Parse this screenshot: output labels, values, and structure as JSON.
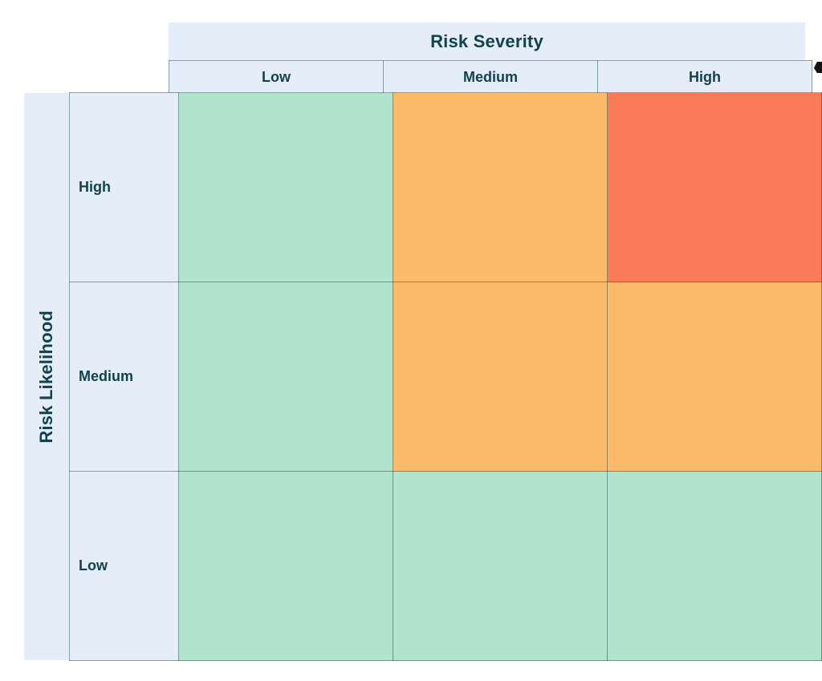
{
  "matrix": {
    "column_axis_title": "Risk Severity",
    "row_axis_title": "Risk Likelihood",
    "column_headers": [
      "Low",
      "Medium",
      "High"
    ],
    "row_headers": [
      "High",
      "Medium",
      "Low"
    ],
    "cells": [
      [
        "low",
        "medium",
        "high"
      ],
      [
        "low",
        "medium",
        "medium"
      ],
      [
        "low",
        "low",
        "low"
      ]
    ]
  },
  "colors": {
    "risk_low": "#b2e3cd",
    "risk_medium": "#fcbb6b",
    "risk_high": "#fa7b58",
    "header_bg": "#e5edf8",
    "text": "#12424d",
    "grid_line": "rgba(23,74,84,0.5)",
    "background": "#ffffff",
    "edge_mark": "#141414"
  },
  "chart_data": {
    "type": "heatmap",
    "title": "",
    "x_axis_label": "Risk Severity",
    "y_axis_label": "Risk Likelihood",
    "x_categories": [
      "Low",
      "Medium",
      "High"
    ],
    "y_categories": [
      "High",
      "Medium",
      "Low"
    ],
    "values": [
      [
        "low",
        "medium",
        "high"
      ],
      [
        "low",
        "medium",
        "medium"
      ],
      [
        "low",
        "low",
        "low"
      ]
    ],
    "value_color_map": {
      "low": "#b2e3cd",
      "medium": "#fcbb6b",
      "high": "#fa7b58"
    },
    "legend_position": "none",
    "grid": true,
    "notes": "Qualitative 3x3 risk assessment matrix; cell value = risk rating for likelihood/severity pair"
  }
}
